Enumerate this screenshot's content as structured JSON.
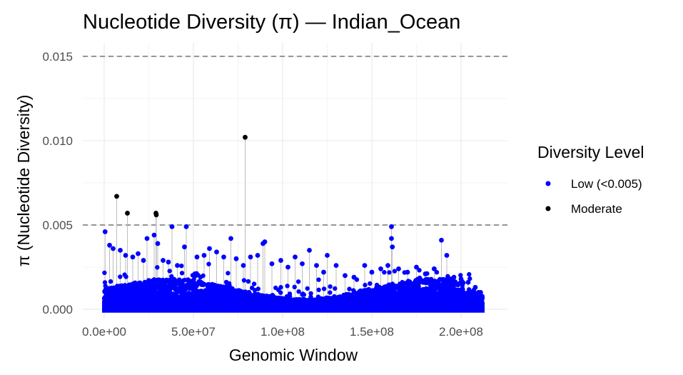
{
  "chart_data": {
    "type": "scatter",
    "title": "Nucleotide Diversity (π) — Indian_Ocean",
    "xlabel": "Genomic Window",
    "ylabel": "π (Nucleotide Diversity)",
    "xlim": [
      -12000000,
      226000000
    ],
    "ylim": [
      -0.00055,
      0.0158
    ],
    "x_ticks": [
      0,
      50000000,
      100000000,
      150000000,
      200000000
    ],
    "x_tick_labels": [
      "0.0e+00",
      "5.0e+07",
      "1.0e+08",
      "1.5e+08",
      "2.0e+08"
    ],
    "y_ticks": [
      0,
      0.005,
      0.01,
      0.015
    ],
    "y_tick_labels": [
      "0.000",
      "0.005",
      "0.010",
      "0.015"
    ],
    "reference_lines": [
      0.005,
      0.015
    ],
    "grid": true,
    "x_range_max": 212000000,
    "legend": {
      "title": "Diversity Level",
      "placement": "right",
      "entries": [
        {
          "label": "Low (<0.005)",
          "color": "#0000ff"
        },
        {
          "label": "Moderate",
          "color": "#000000"
        }
      ]
    },
    "series": [
      {
        "name": "Low (<0.005)",
        "color": "#0000ff",
        "points": [
          [
            500000,
            0.0046
          ],
          [
            3000000,
            0.0038
          ],
          [
            5000000,
            0.0036
          ],
          [
            9000000,
            0.0035
          ],
          [
            12000000,
            0.0032
          ],
          [
            16000000,
            0.0031
          ],
          [
            19000000,
            0.0033
          ],
          [
            22000000,
            0.0029
          ],
          [
            24000000,
            0.0042
          ],
          [
            28000000,
            0.0044
          ],
          [
            30000000,
            0.0039
          ],
          [
            33000000,
            0.0029
          ],
          [
            36000000,
            0.0028
          ],
          [
            38000000,
            0.0049
          ],
          [
            41000000,
            0.0026
          ],
          [
            45000000,
            0.0037
          ],
          [
            46000000,
            0.0049
          ],
          [
            52000000,
            0.0031
          ],
          [
            56000000,
            0.0032
          ],
          [
            59000000,
            0.0036
          ],
          [
            63000000,
            0.0034
          ],
          [
            67000000,
            0.0031
          ],
          [
            71000000,
            0.0042
          ],
          [
            74000000,
            0.003
          ],
          [
            78000000,
            0.0026
          ],
          [
            82000000,
            0.0031
          ],
          [
            86000000,
            0.0032
          ],
          [
            89000000,
            0.0039
          ],
          [
            90000000,
            0.004
          ],
          [
            94000000,
            0.0027
          ],
          [
            99000000,
            0.0029
          ],
          [
            103000000,
            0.0025
          ],
          [
            107000000,
            0.0031
          ],
          [
            111000000,
            0.0027
          ],
          [
            115000000,
            0.0035
          ],
          [
            119000000,
            0.0026
          ],
          [
            123000000,
            0.0022
          ],
          [
            125000000,
            0.0032
          ],
          [
            130000000,
            0.0026
          ],
          [
            135000000,
            0.002
          ],
          [
            140000000,
            0.0019
          ],
          [
            146000000,
            0.0026
          ],
          [
            150000000,
            0.0022
          ],
          [
            155000000,
            0.0024
          ],
          [
            159000000,
            0.0026
          ],
          [
            161000000,
            0.0049
          ],
          [
            161500000,
            0.0037
          ],
          [
            161000000,
            0.0042
          ],
          [
            165000000,
            0.0024
          ],
          [
            170000000,
            0.0022
          ],
          [
            175000000,
            0.0025
          ],
          [
            180000000,
            0.0021
          ],
          [
            185000000,
            0.0024
          ],
          [
            189000000,
            0.0041
          ],
          [
            192000000,
            0.0032
          ],
          [
            196000000,
            0.0019
          ],
          [
            200000000,
            0.0018
          ],
          [
            204000000,
            0.0016
          ],
          [
            208000000,
            0.0013
          ],
          [
            211000000,
            0.001
          ]
        ]
      },
      {
        "name": "Moderate",
        "color": "#000000",
        "points": [
          [
            7000000,
            0.0067
          ],
          [
            13000000,
            0.0057
          ],
          [
            29000000,
            0.0057
          ],
          [
            29200000,
            0.0056
          ],
          [
            79000000,
            0.0102
          ]
        ]
      }
    ]
  }
}
